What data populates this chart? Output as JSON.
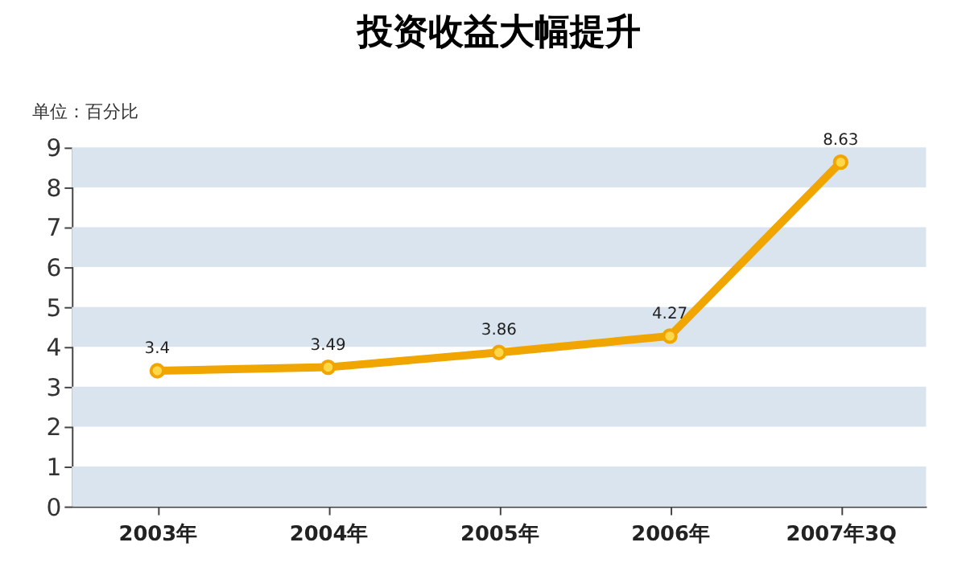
{
  "chart_data": {
    "type": "line",
    "title": "投资收益大幅提升",
    "ylabel": "单位：百分比",
    "categories": [
      "2003年",
      "2004年",
      "2005年",
      "2006年",
      "2007年3Q"
    ],
    "series": [
      {
        "color": "#f0a500",
        "values": [
          3.4,
          3.49,
          3.86,
          4.27,
          8.63
        ]
      }
    ],
    "ylim": [
      0,
      9
    ],
    "yticks": [
      0,
      1,
      2,
      3,
      4,
      5,
      6,
      7,
      8,
      9
    ],
    "bands": [
      {
        "axis": "y",
        "from": 0,
        "to": 1,
        "color": "#dae4ef"
      },
      {
        "axis": "y",
        "from": 2,
        "to": 3,
        "color": "#dae4ef"
      },
      {
        "axis": "y",
        "from": 4,
        "to": 5,
        "color": "#dae4ef"
      },
      {
        "axis": "y",
        "from": 6,
        "to": 7,
        "color": "#dae4ef"
      },
      {
        "axis": "y",
        "from": 8,
        "to": 9,
        "color": "#dae4ef"
      }
    ],
    "grid": false,
    "marker": "circle",
    "line_style": "solid",
    "data_labels": true
  }
}
